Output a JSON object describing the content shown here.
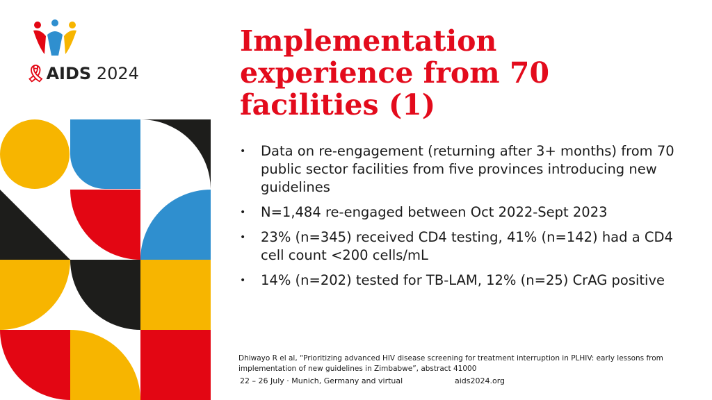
{
  "logo": {
    "ribbon_glyph": "🎗",
    "brand": "AIDS",
    "year": "2024"
  },
  "slide": {
    "title": "Implementation experience from 70 facilities (1)",
    "bullets": [
      "Data on re-engagement (returning after 3+ months) from 70 public sector facilities from five provinces introducing new guidelines",
      "N=1,484 re-engaged between Oct 2022-Sept 2023",
      "23% (n=345) received CD4 testing, 41% (n=142) had a CD4 cell count <200 cells/mL",
      "14% (n=202) tested for TB-LAM, 12% (n=25) CrAG positive"
    ],
    "bullet_marker": "•"
  },
  "citation": "Dhiwayo R el al, “Prioritizing advanced HIV disease screening for treatment interruption in PLHIV: early lessons from implementation of new guidelines in Zimbabwe”, abstract 41000",
  "footer": {
    "date": "22 – 26 July · Munich, Germany and virtual",
    "url": "aids2024.org"
  },
  "colors": {
    "title": "#e30b1c",
    "yellow": "#f7b500",
    "blue": "#2f8fcf",
    "red": "#e30613",
    "black": "#1d1d1b"
  }
}
